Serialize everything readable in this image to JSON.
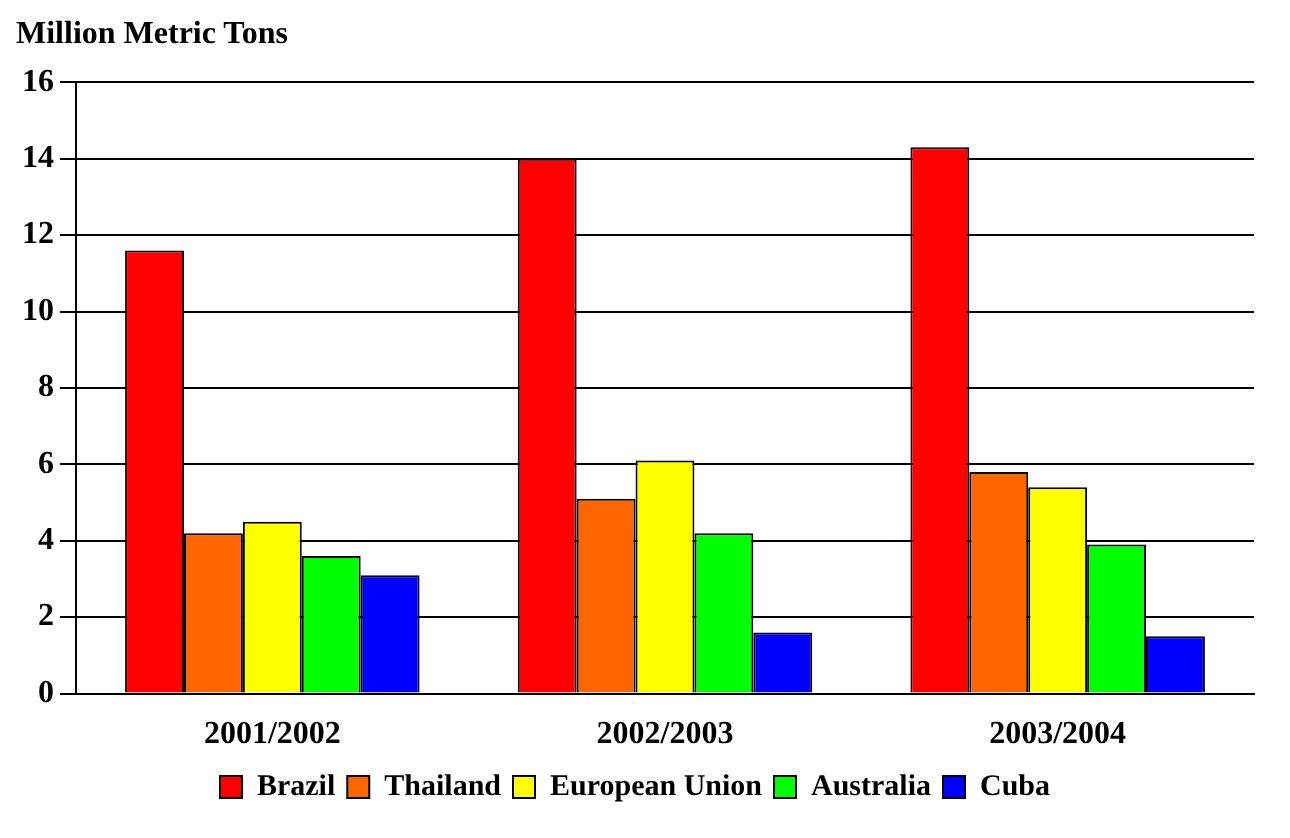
{
  "chart_data": {
    "type": "bar",
    "title": "Million Metric Tons",
    "categories": [
      "2001/2002",
      "2002/2003",
      "2003/2004"
    ],
    "series": [
      {
        "name": "Brazil",
        "color": "#ff0000",
        "values": [
          11.6,
          14.0,
          14.3
        ]
      },
      {
        "name": "Thailand",
        "color": "#ff6600",
        "values": [
          4.2,
          5.1,
          5.8
        ]
      },
      {
        "name": "European Union",
        "color": "#ffff00",
        "values": [
          4.5,
          6.1,
          5.4
        ]
      },
      {
        "name": "Australia",
        "color": "#00ff00",
        "values": [
          3.6,
          4.2,
          3.9
        ]
      },
      {
        "name": "Cuba",
        "color": "#0000ff",
        "values": [
          3.1,
          1.6,
          1.5
        ]
      }
    ],
    "ylim": [
      0,
      16
    ],
    "yticks": [
      0,
      2,
      4,
      6,
      8,
      10,
      12,
      14,
      16
    ],
    "grid": "y",
    "legend": "bottom"
  }
}
